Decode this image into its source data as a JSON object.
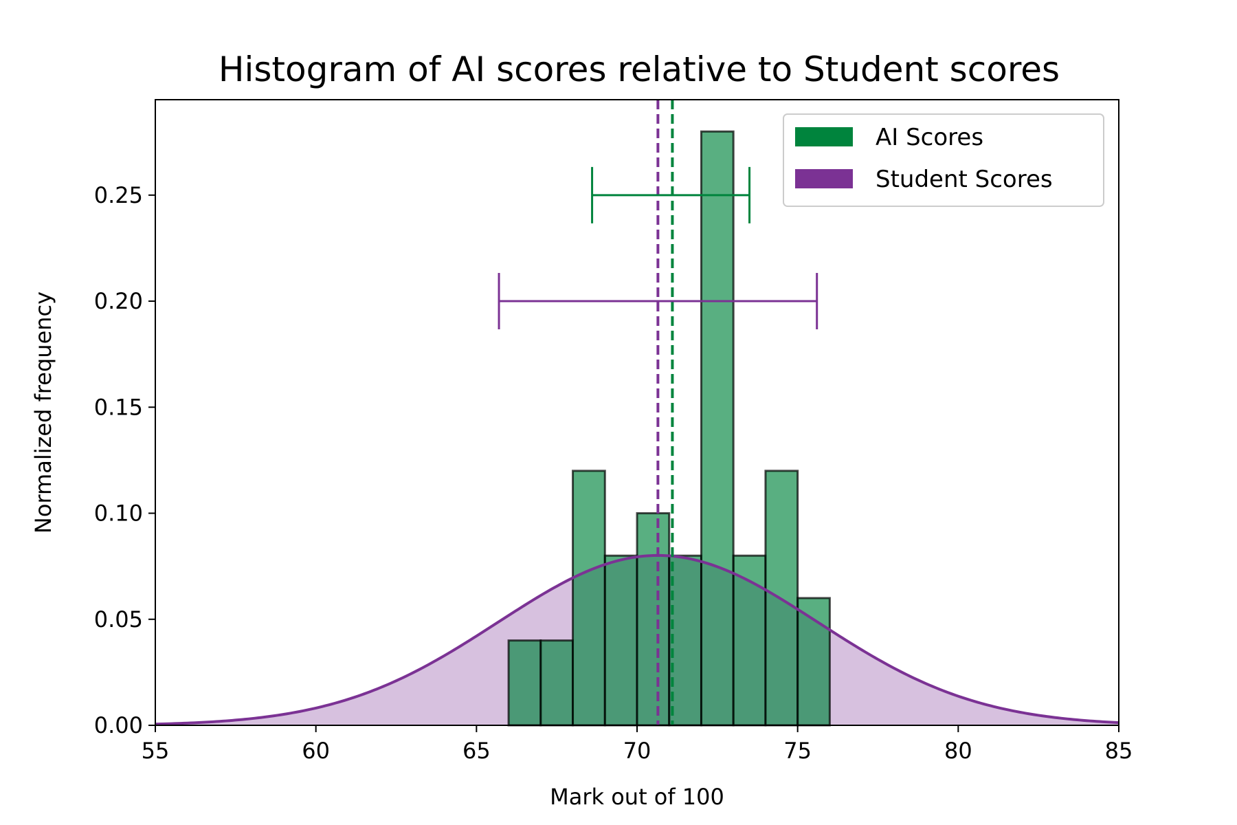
{
  "chart_data": {
    "type": "bar",
    "title": "Histogram of AI scores relative to Student scores",
    "xlabel": "Mark out of 100",
    "ylabel": "Normalized frequency",
    "xlim": [
      55,
      85
    ],
    "ylim": [
      0,
      0.295
    ],
    "xticks": [
      "55",
      "60",
      "65",
      "70",
      "75",
      "80",
      "85"
    ],
    "xtick_values": [
      55,
      60,
      65,
      70,
      75,
      80,
      85
    ],
    "yticks": [
      "0.00",
      "0.05",
      "0.10",
      "0.15",
      "0.20",
      "0.25"
    ],
    "ytick_values": [
      0,
      0.05,
      0.1,
      0.15,
      0.2,
      0.25
    ],
    "grid": false,
    "legend_position": "top-right",
    "series": [
      {
        "name": "AI Scores",
        "kind": "histogram",
        "color": "#00843d",
        "bins": [
          {
            "start": 66,
            "end": 67,
            "value": 0.04
          },
          {
            "start": 67,
            "end": 68,
            "value": 0.04
          },
          {
            "start": 68,
            "end": 69,
            "value": 0.12
          },
          {
            "start": 69,
            "end": 70,
            "value": 0.08
          },
          {
            "start": 70,
            "end": 71,
            "value": 0.1
          },
          {
            "start": 71,
            "end": 72,
            "value": 0.08
          },
          {
            "start": 72,
            "end": 73,
            "value": 0.28
          },
          {
            "start": 73,
            "end": 74,
            "value": 0.08
          },
          {
            "start": 74,
            "end": 75,
            "value": 0.12
          },
          {
            "start": 75,
            "end": 76,
            "value": 0.06
          }
        ],
        "mean": 71.1,
        "errorbar": {
          "y": 0.25,
          "low": 68.6,
          "high": 73.5
        }
      },
      {
        "name": "Student Scores",
        "kind": "normal_density",
        "color": "#7b3294",
        "mean": 70.65,
        "std": 4.98,
        "errorbar": {
          "y": 0.2,
          "low": 65.7,
          "high": 75.6
        }
      }
    ]
  }
}
